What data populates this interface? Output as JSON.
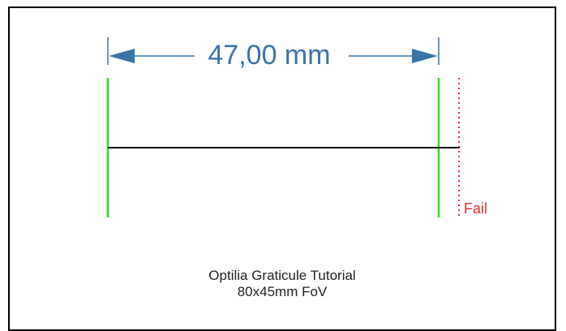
{
  "dimension": {
    "label": "47,00 mm"
  },
  "marker": {
    "fail_label": "Fail"
  },
  "caption": {
    "line1": "Optilia Graticule Tutorial",
    "line2": "80x45mm FoV"
  },
  "colors": {
    "dimension": "#3a73a8",
    "limit_lines": "#22dd22",
    "fail": "#e03030",
    "measure_line": "#000000",
    "frame": "#000000"
  }
}
